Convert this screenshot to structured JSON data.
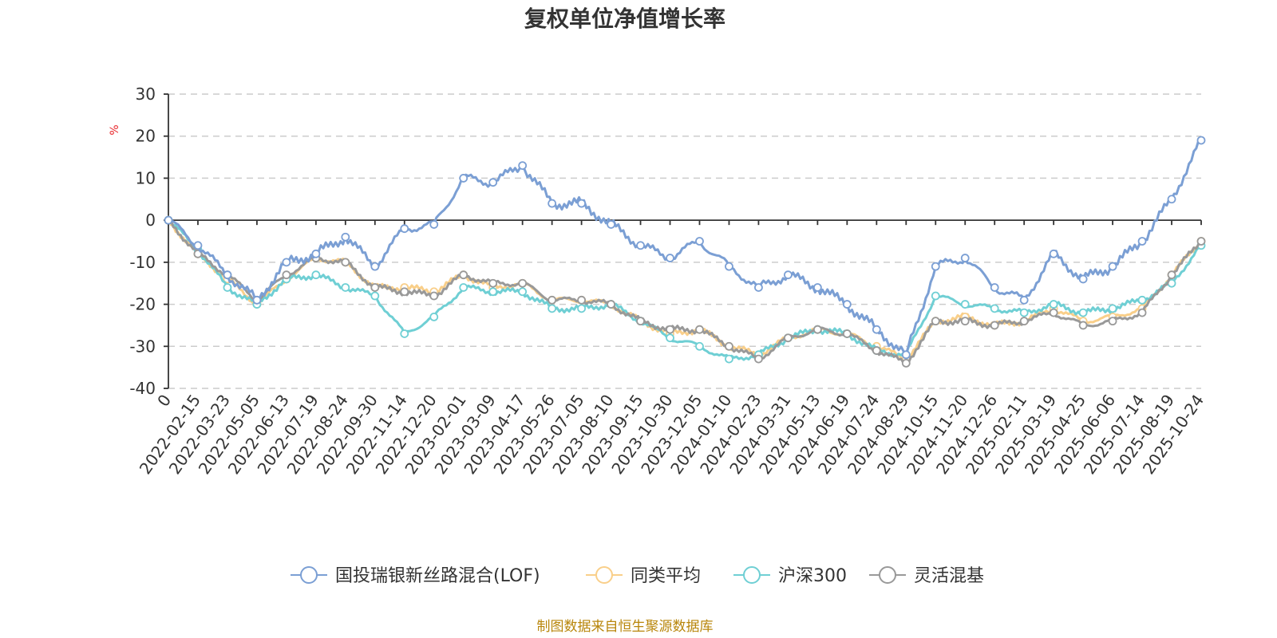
{
  "chart_data": {
    "type": "line",
    "title": "复权单位净值增长率",
    "ylabel": "%",
    "ylim": [
      -40,
      30
    ],
    "yticks": [
      30,
      20,
      10,
      0,
      -10,
      -20,
      -30,
      -40
    ],
    "xlabel": "",
    "x_labels": [
      "0",
      "2022-02-15",
      "2022-03-23",
      "2022-05-05",
      "2022-06-13",
      "2022-07-19",
      "2022-08-24",
      "2022-09-30",
      "2022-11-14",
      "2022-12-20",
      "2023-02-01",
      "2023-03-09",
      "2023-04-17",
      "2023-05-26",
      "2023-07-05",
      "2023-08-10",
      "2023-09-15",
      "2023-10-30",
      "2023-12-05",
      "2024-01-10",
      "2024-02-23",
      "2024-03-31",
      "2024-05-13",
      "2024-06-19",
      "2024-07-24",
      "2024-08-29",
      "2024-10-15",
      "2024-11-20",
      "2024-12-26",
      "2025-02-11",
      "2025-03-19",
      "2025-04-25",
      "2025-06-06",
      "2025-07-14",
      "2025-08-19",
      "2025-10-24"
    ],
    "grid": true,
    "legend_position": "bottom",
    "series": [
      {
        "name": "国投瑞银新丝路混合(LOF)",
        "color": "#7b9fd4",
        "values": [
          0,
          -6,
          -13,
          -19,
          -10,
          -8,
          -4,
          -11,
          -2,
          -1,
          10,
          9,
          13,
          4,
          4,
          -1,
          -6,
          -9,
          -5,
          -11,
          -16,
          -13,
          -16,
          -20,
          -26,
          -32,
          -11,
          -9,
          -16,
          -19,
          -8,
          -14,
          -11,
          -5,
          5,
          19
        ]
      },
      {
        "name": "同类平均",
        "color": "#f9cf8a",
        "values": [
          0,
          -8,
          -14,
          -20,
          -14,
          -9,
          -10,
          -16,
          -16,
          -17,
          -13,
          -16,
          -15,
          -19,
          -19,
          -20,
          -24,
          -27,
          -26,
          -30,
          -32,
          -28,
          -26,
          -27,
          -30,
          -33,
          -24,
          -23,
          -25,
          -24,
          -21,
          -24,
          -23,
          -21,
          -13,
          -5
        ]
      },
      {
        "name": "沪深300",
        "color": "#6fcfd4",
        "values": [
          0,
          -7,
          -16,
          -20,
          -14,
          -13,
          -16,
          -18,
          -27,
          -23,
          -16,
          -17,
          -17,
          -21,
          -21,
          -20,
          -24,
          -28,
          -30,
          -33,
          -32,
          -28,
          -26,
          -27,
          -31,
          -32,
          -18,
          -20,
          -21,
          -22,
          -20,
          -22,
          -21,
          -19,
          -15,
          -6
        ]
      },
      {
        "name": "灵活混基",
        "color": "#999999",
        "values": [
          0,
          -8,
          -13,
          -19,
          -13,
          -9,
          -10,
          -16,
          -17,
          -18,
          -13,
          -15,
          -15,
          -19,
          -19,
          -20,
          -24,
          -26,
          -26,
          -30,
          -33,
          -28,
          -26,
          -27,
          -31,
          -34,
          -24,
          -24,
          -25,
          -24,
          -22,
          -25,
          -24,
          -22,
          -13,
          -5
        ]
      }
    ]
  },
  "source_note": "制图数据来自恒生聚源数据库"
}
